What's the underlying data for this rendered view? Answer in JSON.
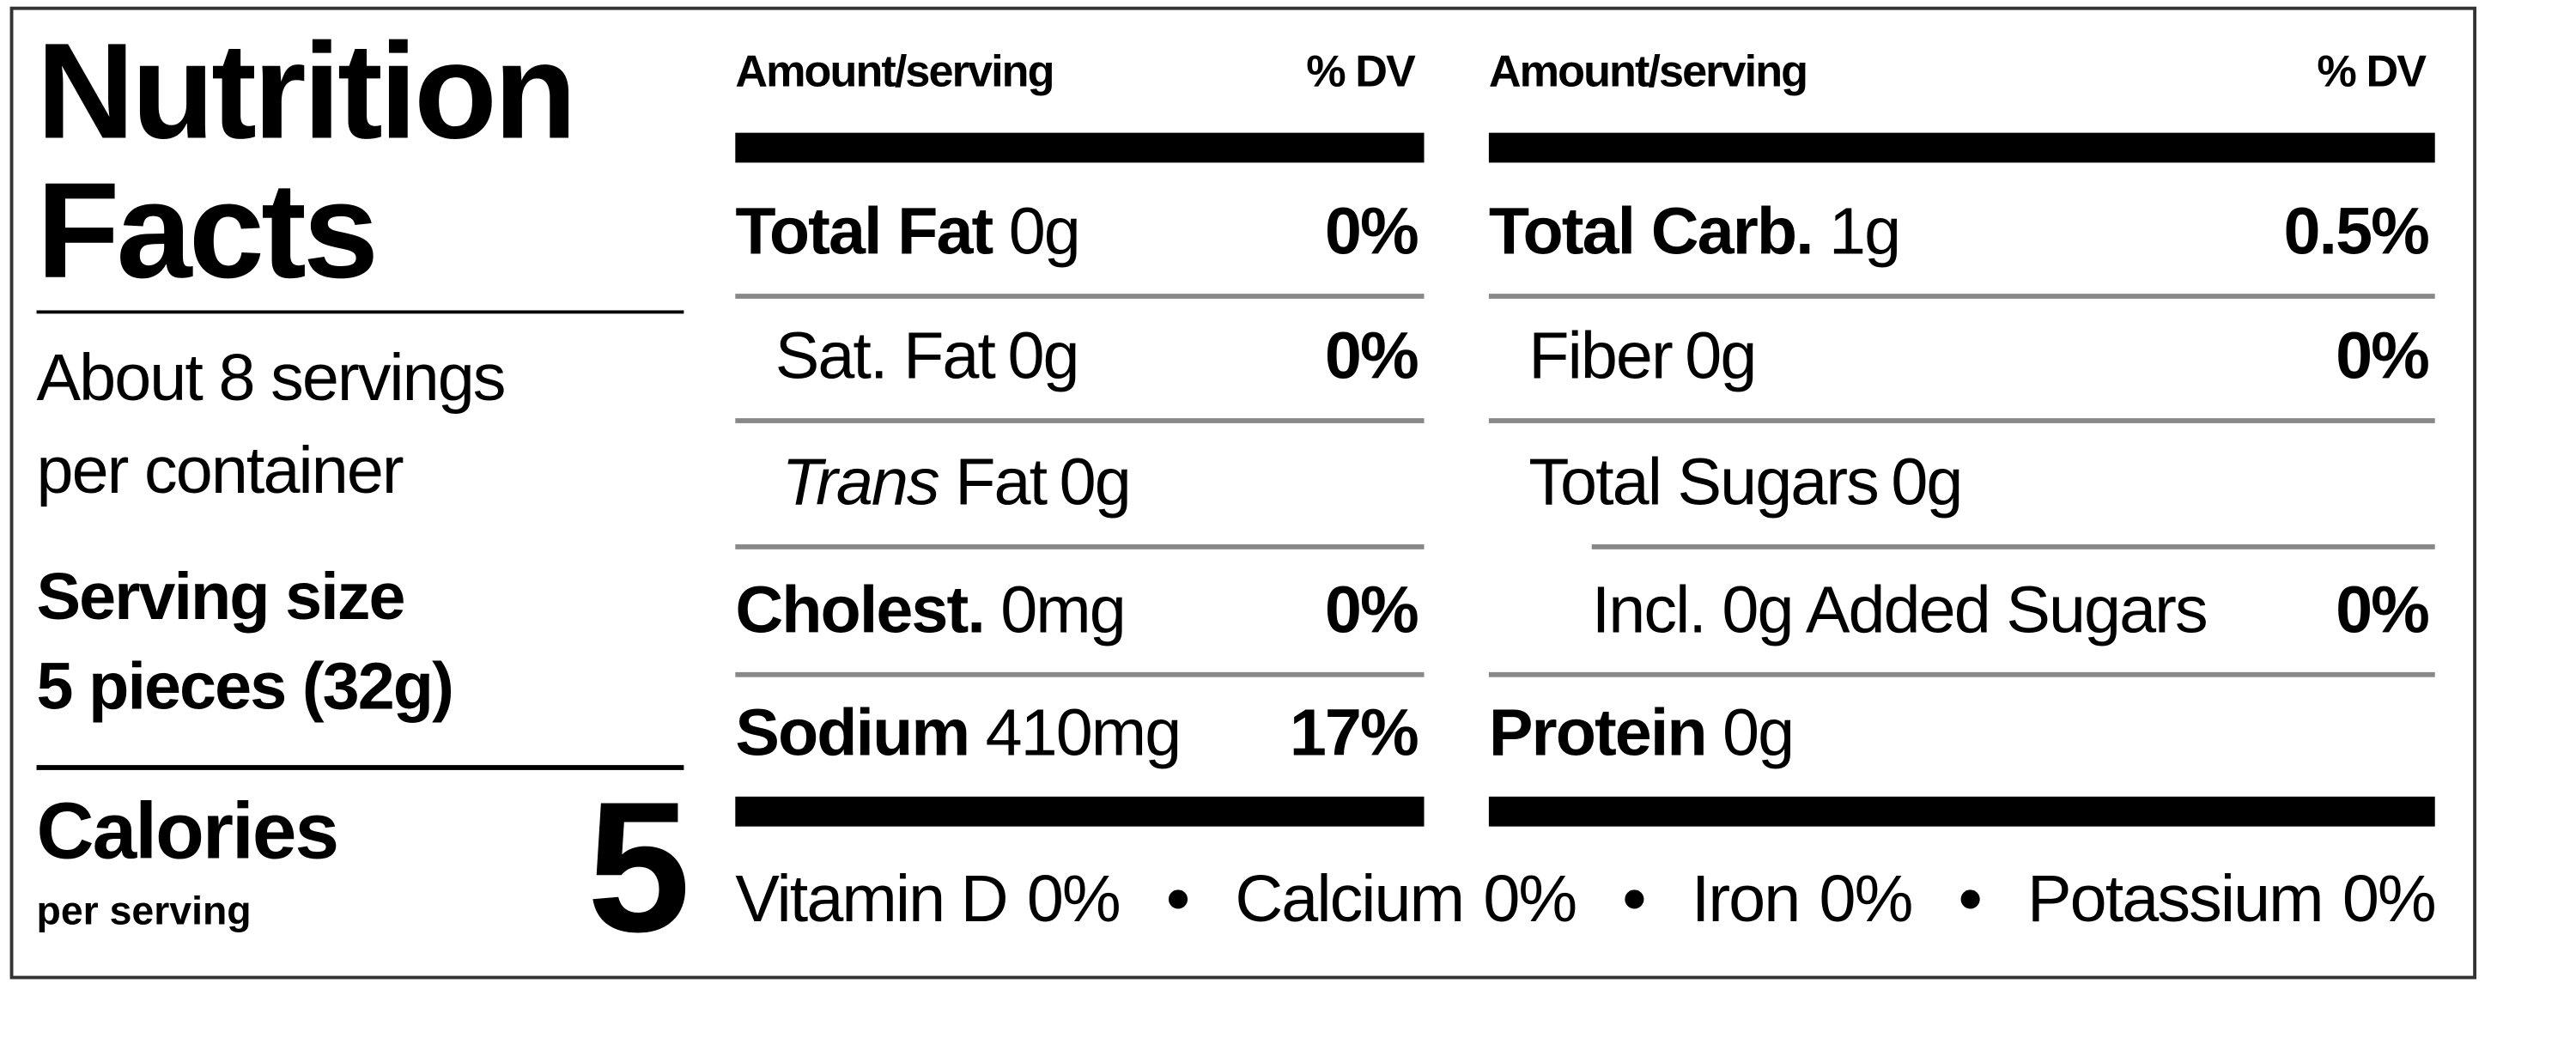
{
  "title": "Nutrition Facts",
  "servings": "About 8 servings per container",
  "serving_size": {
    "label": "Serving size",
    "value": "5 pieces (32g)"
  },
  "calories": {
    "label": "Calories",
    "sublabel": "per serving",
    "value": 5
  },
  "columns": [
    {
      "header_amount": "Amount/serving",
      "header_dv": "% DV",
      "rows": [
        {
          "name": "Total Fat",
          "amount": "0g",
          "dv": "0%"
        },
        {
          "name": "Sat. Fat",
          "amount": "0g",
          "dv": "0%"
        },
        {
          "name_italic": "Trans",
          "name": "Fat",
          "amount": "0g"
        },
        {
          "name": "Cholest.",
          "amount": "0mg",
          "dv": "0%"
        },
        {
          "name": "Sodium",
          "amount": "410mg",
          "dv": "17%"
        }
      ]
    },
    {
      "header_amount": "Amount/serving",
      "header_dv": "% DV",
      "rows": [
        {
          "name": "Total Carb.",
          "amount": "1g",
          "dv": "0.5%"
        },
        {
          "name": "Fiber",
          "amount": "0g",
          "dv": "0%"
        },
        {
          "name": "Total Sugars",
          "amount": "0g"
        },
        {
          "name": "Incl. 0g Added Sugars",
          "dv": "0%"
        },
        {
          "name": "Protein",
          "amount": "0g"
        }
      ]
    }
  ],
  "vitamins": [
    {
      "name": "Vitamin D",
      "dv": "0%"
    },
    {
      "name": "Calcium",
      "dv": "0%"
    },
    {
      "name": "Iron",
      "dv": "0%"
    },
    {
      "name": "Potassium",
      "dv": "0%"
    }
  ]
}
